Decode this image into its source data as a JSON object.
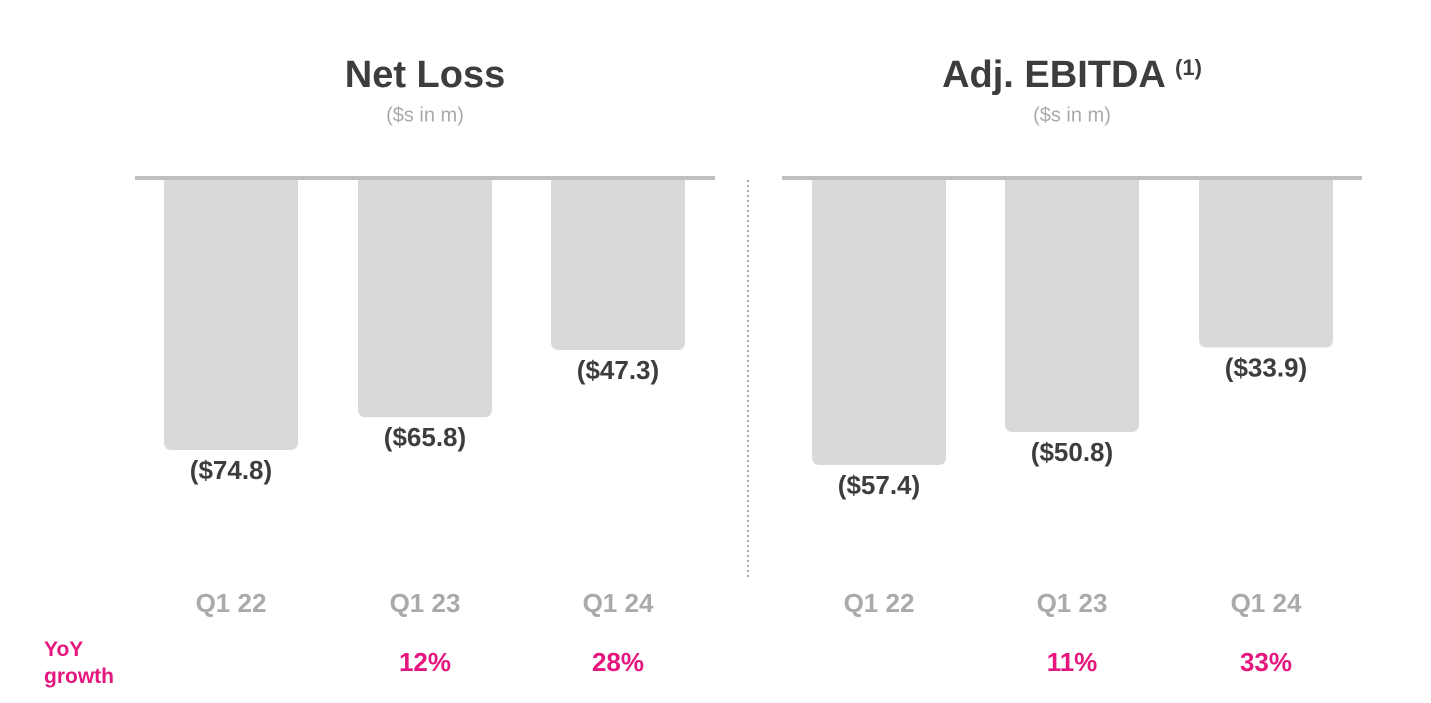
{
  "chart_data": [
    {
      "type": "bar",
      "title": "Net Loss",
      "subtitle": "($s in m)",
      "categories": [
        "Q1 22",
        "Q1 23",
        "Q1 24"
      ],
      "values": [
        -74.8,
        -65.8,
        -47.3
      ],
      "value_labels": [
        "($74.8)",
        "($65.8)",
        "($47.3)"
      ],
      "color": "#d9d9d9",
      "ylim": [
        -110,
        0
      ],
      "growth_values": [
        null,
        12,
        28
      ],
      "growth_labels": [
        null,
        "12%",
        "28%"
      ]
    },
    {
      "type": "bar",
      "title": "Adj. EBITDA",
      "title_note": "(1)",
      "subtitle": "($s in m)",
      "categories": [
        "Q1 22",
        "Q1 23",
        "Q1 24"
      ],
      "values": [
        -57.4,
        -50.8,
        -33.9
      ],
      "value_labels": [
        "($57.4)",
        "($50.8)",
        "($33.9)"
      ],
      "color": "#d9d9d9",
      "ylim": [
        -80,
        0
      ],
      "growth_values": [
        null,
        11,
        33
      ],
      "growth_labels": [
        null,
        "11%",
        "33%"
      ]
    }
  ],
  "growth_label": "YoY growth"
}
